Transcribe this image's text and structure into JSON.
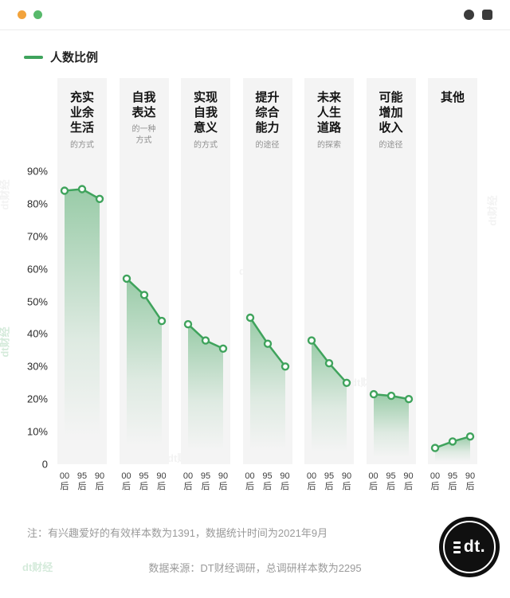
{
  "topbar": {
    "left_icons": [
      "orange-dot-icon",
      "green-dot-icon"
    ],
    "right_icons": [
      "dark-circle-icon",
      "dark-square-icon"
    ]
  },
  "legend": {
    "label": "人数比例",
    "color": "#3FA35C"
  },
  "chart_data": {
    "type": "line",
    "title": "人数比例",
    "legend": [
      "人数比例"
    ],
    "x_categories": [
      "00后",
      "95后",
      "90后"
    ],
    "ylim": [
      0,
      90
    ],
    "yticks": [
      90,
      80,
      70,
      60,
      50,
      40,
      30,
      20,
      10,
      0
    ],
    "ytick_labels": [
      "90%",
      "80%",
      "70%",
      "60%",
      "50%",
      "40%",
      "30%",
      "20%",
      "10%",
      "0"
    ],
    "unit": "%",
    "grid": false,
    "line_color": "#3FA35C",
    "panels": [
      {
        "title": "充实业余生活",
        "title_lines": [
          "充实",
          "业余",
          "生活"
        ],
        "subtitle": "的方式",
        "subtitle_lines": [
          "的方式"
        ],
        "values": [
          84,
          84.5,
          81.5
        ]
      },
      {
        "title": "自我表达",
        "title_lines": [
          "自我",
          "表达"
        ],
        "subtitle": "的一种方式",
        "subtitle_lines": [
          "的一种",
          "方式"
        ],
        "values": [
          57,
          52,
          44
        ]
      },
      {
        "title": "实现自我意义",
        "title_lines": [
          "实现",
          "自我",
          "意义"
        ],
        "subtitle": "的方式",
        "subtitle_lines": [
          "的方式"
        ],
        "values": [
          43,
          38,
          35.5
        ]
      },
      {
        "title": "提升综合能力",
        "title_lines": [
          "提升",
          "综合",
          "能力"
        ],
        "subtitle": "的途径",
        "subtitle_lines": [
          "的途径"
        ],
        "values": [
          45,
          37,
          30
        ]
      },
      {
        "title": "未来人生道路",
        "title_lines": [
          "未来",
          "人生",
          "道路"
        ],
        "subtitle": "的探索",
        "subtitle_lines": [
          "的探索"
        ],
        "values": [
          38,
          31,
          25
        ]
      },
      {
        "title": "可能增加收入",
        "title_lines": [
          "可能",
          "增加",
          "收入"
        ],
        "subtitle": "的途径",
        "subtitle_lines": [
          "的途径"
        ],
        "values": [
          21.5,
          21,
          20
        ]
      },
      {
        "title": "其他",
        "title_lines": [
          "其他"
        ],
        "subtitle": "",
        "subtitle_lines": [],
        "values": [
          5,
          7,
          8.5
        ]
      }
    ]
  },
  "notes": {
    "note": "注：有兴趣爱好的有效样本数为1391，数据统计时间为2021年9月",
    "source": "数据来源：DT财经调研，总调研样本数为2295"
  },
  "logo": {
    "text": "dt."
  },
  "watermark": {
    "text": "dt财经"
  }
}
